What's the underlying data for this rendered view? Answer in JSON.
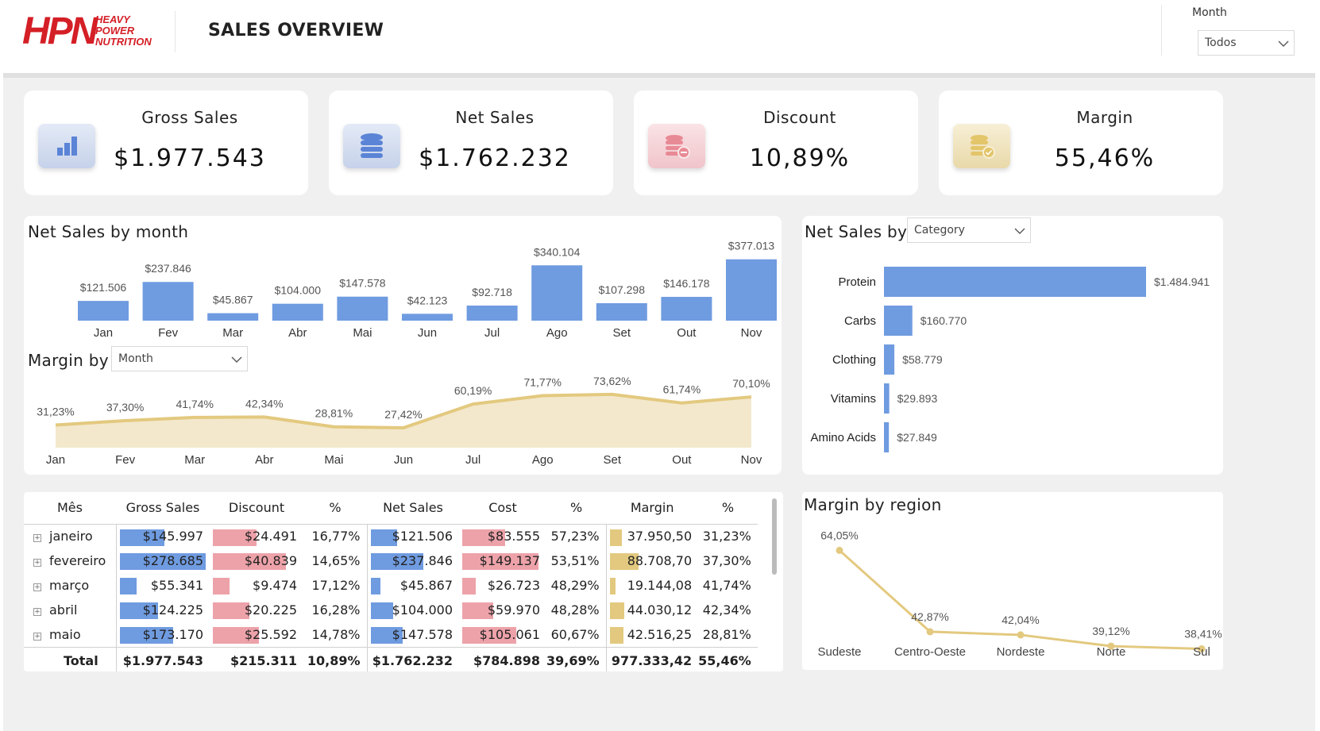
{
  "header": {
    "logo_main": "HPN",
    "logo_sub": [
      "HEAVY",
      "POWER",
      "NUTRITION"
    ],
    "title": "SALES OVERVIEW",
    "filter_label": "Month",
    "filter_value": "Todos"
  },
  "kpis": [
    {
      "title": "Gross Sales",
      "value": "$1.977.543",
      "icon": "bar-chart-icon",
      "color": "#5b84d6"
    },
    {
      "title": "Net Sales",
      "value": "$1.762.232",
      "icon": "database-icon",
      "color": "#5b84d6"
    },
    {
      "title": "Discount",
      "value": "10,89%",
      "icon": "coins-minus-icon",
      "color": "#e88a95"
    },
    {
      "title": "Margin",
      "value": "55,46%",
      "icon": "coins-check-icon",
      "color": "#e3c56a"
    }
  ],
  "net_sales_month": {
    "title": "Net Sales by month",
    "chart_data": {
      "type": "bar",
      "categories": [
        "Jan",
        "Fev",
        "Mar",
        "Abr",
        "Mai",
        "Jun",
        "Jul",
        "Ago",
        "Set",
        "Out",
        "Nov"
      ],
      "values": [
        121506,
        237846,
        45867,
        104000,
        147578,
        42123,
        92718,
        340104,
        107298,
        146178,
        377013
      ],
      "labels": [
        "$121.506",
        "$237.846",
        "$45.867",
        "$104.000",
        "$147.578",
        "$42.123",
        "$92.718",
        "$340.104",
        "$107.298",
        "$146.178",
        "$377.013"
      ]
    }
  },
  "margin_by": {
    "title": "Margin by",
    "dropdown": "Month",
    "chart_data": {
      "type": "area",
      "categories": [
        "Jan",
        "Fev",
        "Mar",
        "Abr",
        "Mai",
        "Jun",
        "Jul",
        "Ago",
        "Set",
        "Out",
        "Nov"
      ],
      "values": [
        31.23,
        37.3,
        41.74,
        42.34,
        28.81,
        27.42,
        60.19,
        71.77,
        73.62,
        61.74,
        70.1
      ],
      "labels": [
        "31,23%",
        "37,30%",
        "41,74%",
        "42,34%",
        "28,81%",
        "27,42%",
        "60,19%",
        "71,77%",
        "73,62%",
        "61,74%",
        "70,10%"
      ]
    }
  },
  "net_sales_by": {
    "title": "Net Sales by",
    "dropdown": "Category",
    "chart_data": {
      "type": "bar",
      "orientation": "horizontal",
      "categories": [
        "Protein",
        "Carbs",
        "Clothing",
        "Vitamins",
        "Amino Acids"
      ],
      "values": [
        1484941,
        160770,
        58779,
        29893,
        27849
      ],
      "labels": [
        "$1.484.941",
        "$160.770",
        "$58.779",
        "$29.893",
        "$27.849"
      ]
    }
  },
  "margin_region": {
    "title": "Margin by region",
    "chart_data": {
      "type": "line",
      "categories": [
        "Sudeste",
        "Centro-Oeste",
        "Nordeste",
        "Norte",
        "Sul"
      ],
      "values": [
        64.05,
        42.87,
        42.04,
        39.12,
        38.41
      ],
      "labels": [
        "64,05%",
        "42,87%",
        "42,04%",
        "39,12%",
        "38,41%"
      ]
    }
  },
  "table": {
    "headers": [
      "Mês",
      "Gross Sales",
      "Discount",
      "%",
      "Net Sales",
      "Cost",
      "%",
      "Margin",
      "%"
    ],
    "rows": [
      {
        "name": "janeiro",
        "gross": "$145.997",
        "gross_v": 145997,
        "disc": "$24.491",
        "disc_v": 24491,
        "disc_pct": "16,77%",
        "net": "$121.506",
        "net_v": 121506,
        "cost": "$83.555",
        "cost_v": 83555,
        "cost_pct": "57,23%",
        "margin": "37.950,50",
        "margin_v": 37950.5,
        "margin_pct": "31,23%"
      },
      {
        "name": "fevereiro",
        "gross": "$278.685",
        "gross_v": 278685,
        "disc": "$40.839",
        "disc_v": 40839,
        "disc_pct": "14,65%",
        "net": "$237.846",
        "net_v": 237846,
        "cost": "$149.137",
        "cost_v": 149137,
        "cost_pct": "53,51%",
        "margin": "88.708,70",
        "margin_v": 88708.7,
        "margin_pct": "37,30%"
      },
      {
        "name": "março",
        "gross": "$55.341",
        "gross_v": 55341,
        "disc": "$9.474",
        "disc_v": 9474,
        "disc_pct": "17,12%",
        "net": "$45.867",
        "net_v": 45867,
        "cost": "$26.723",
        "cost_v": 26723,
        "cost_pct": "48,29%",
        "margin": "19.144,08",
        "margin_v": 19144.08,
        "margin_pct": "41,74%"
      },
      {
        "name": "abril",
        "gross": "$124.225",
        "gross_v": 124225,
        "disc": "$20.225",
        "disc_v": 20225,
        "disc_pct": "16,28%",
        "net": "$104.000",
        "net_v": 104000,
        "cost": "$59.970",
        "cost_v": 59970,
        "cost_pct": "48,28%",
        "margin": "44.030,12",
        "margin_v": 44030.12,
        "margin_pct": "42,34%"
      },
      {
        "name": "maio",
        "gross": "$173.170",
        "gross_v": 173170,
        "disc": "$25.592",
        "disc_v": 25592,
        "disc_pct": "14,78%",
        "net": "$147.578",
        "net_v": 147578,
        "cost": "$105.061",
        "cost_v": 105061,
        "cost_pct": "60,67%",
        "margin": "42.516,25",
        "margin_v": 42516.25,
        "margin_pct": "28,81%"
      }
    ],
    "total": {
      "name": "Total",
      "gross": "$1.977.543",
      "disc": "$215.311",
      "disc_pct": "10,89%",
      "net": "$1.762.232",
      "cost": "$784.898",
      "cost_pct": "39,69%",
      "margin": "977.333,42",
      "margin_pct": "55,46%"
    }
  },
  "colors": {
    "blue": "#6f9be0",
    "pink": "#eda2a9",
    "gold": "#e3c97f",
    "area": "#f3e8cc",
    "line": "#e3c97f"
  }
}
